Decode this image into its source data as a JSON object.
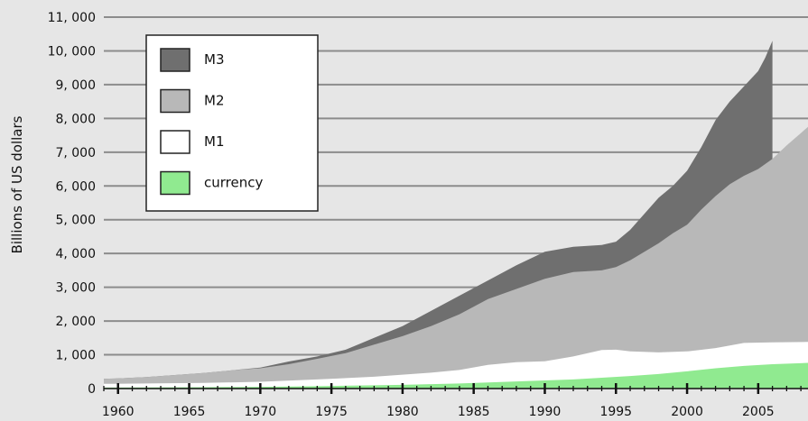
{
  "chart_data": {
    "type": "area",
    "title": "",
    "xlabel": "",
    "ylabel": "Billions of US dollars",
    "xlim": [
      1959,
      2008.5
    ],
    "ylim": [
      0,
      11000
    ],
    "grid": true,
    "legend_position": "top-left",
    "x_ticks": [
      1960,
      1965,
      1970,
      1975,
      1980,
      1985,
      1990,
      1995,
      2000,
      2005
    ],
    "y_ticks": [
      0,
      1000,
      2000,
      3000,
      4000,
      5000,
      6000,
      7000,
      8000,
      9000,
      10000,
      11000
    ],
    "y_tick_labels": [
      "0",
      "1, 000",
      "2, 000",
      "3, 000",
      "4, 000",
      "5, 000",
      "6, 000",
      "7, 000",
      "8, 000",
      "9, 000",
      "10, 000",
      "11, 000"
    ],
    "x_tick_labels": [
      "1960",
      "1965",
      "1970",
      "1975",
      "1980",
      "1985",
      "1990",
      "1995",
      "2000",
      "2005"
    ],
    "series": [
      {
        "name": "M3",
        "color": "#6f6f6f",
        "x": [
          1959,
          1960,
          1962,
          1964,
          1966,
          1968,
          1970,
          1972,
          1974,
          1976,
          1978,
          1980,
          1982,
          1984,
          1986,
          1988,
          1990,
          1992,
          1994,
          1995,
          1996,
          1998,
          1999,
          2000,
          2001,
          2002,
          2003,
          2004,
          2005,
          2005.5,
          2006
        ],
        "values": [
          290,
          300,
          340,
          400,
          460,
          540,
          620,
          800,
          950,
          1150,
          1500,
          1850,
          2300,
          2750,
          3200,
          3650,
          4050,
          4200,
          4250,
          4350,
          4700,
          5650,
          6000,
          6450,
          7150,
          7950,
          8500,
          8950,
          9400,
          9800,
          10300
        ]
      },
      {
        "name": "M2",
        "color": "#b8b8b8",
        "x": [
          1959,
          1960,
          1962,
          1964,
          1966,
          1968,
          1970,
          1972,
          1974,
          1976,
          1978,
          1980,
          1982,
          1984,
          1986,
          1988,
          1990,
          1992,
          1994,
          1995,
          1996,
          1998,
          1999,
          2000,
          2001,
          2002,
          2003,
          2004,
          2005,
          2006,
          2007,
          2008.5
        ],
        "values": [
          290,
          300,
          340,
          400,
          460,
          540,
          600,
          720,
          880,
          1050,
          1300,
          1550,
          1850,
          2200,
          2650,
          2950,
          3250,
          3450,
          3500,
          3600,
          3800,
          4300,
          4600,
          4850,
          5300,
          5700,
          6050,
          6300,
          6500,
          6800,
          7200,
          7750
        ]
      },
      {
        "name": "M1",
        "color": "#ffffff",
        "x": [
          1959,
          1962,
          1966,
          1970,
          1974,
          1978,
          1980,
          1982,
          1984,
          1986,
          1988,
          1990,
          1992,
          1994,
          1995,
          1996,
          1998,
          2000,
          2002,
          2004,
          2006,
          2008.5
        ],
        "values": [
          140,
          150,
          165,
          200,
          270,
          350,
          410,
          470,
          550,
          700,
          780,
          810,
          950,
          1140,
          1150,
          1100,
          1070,
          1100,
          1200,
          1350,
          1370,
          1380
        ]
      },
      {
        "name": "currency",
        "color": "#90ea90",
        "x": [
          1959,
          1962,
          1966,
          1970,
          1974,
          1978,
          1980,
          1982,
          1984,
          1986,
          1988,
          1990,
          1992,
          1994,
          1996,
          1998,
          2000,
          2002,
          2004,
          2006,
          2008.5
        ],
        "values": [
          30,
          32,
          40,
          50,
          70,
          95,
          110,
          130,
          150,
          180,
          210,
          240,
          270,
          320,
          370,
          430,
          510,
          600,
          670,
          720,
          760
        ]
      }
    ]
  }
}
